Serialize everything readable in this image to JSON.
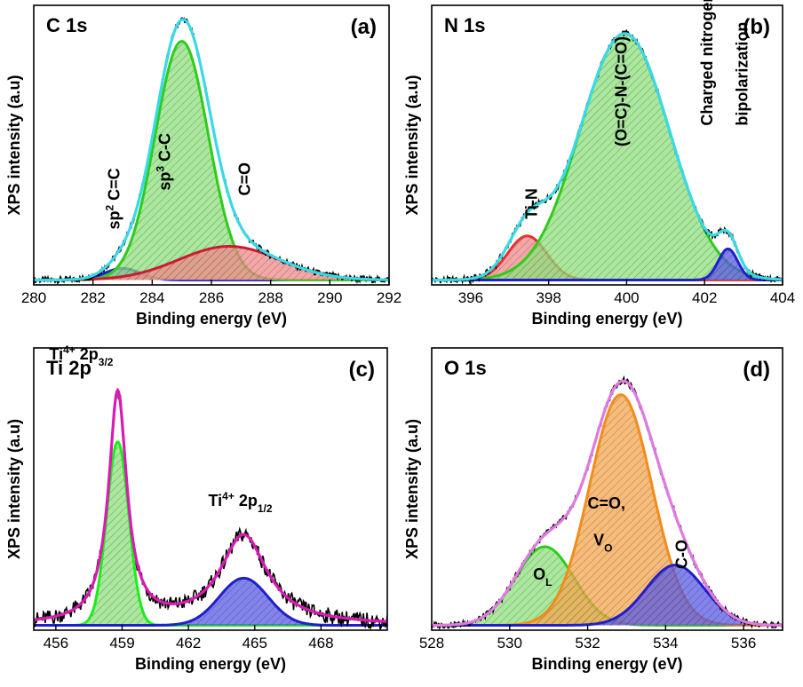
{
  "chart_data": [
    {
      "type": "line",
      "title": "C 1s",
      "panel_letter": "(a)",
      "xlabel": "Binding energy (eV)",
      "ylabel": "XPS intensity (a.u)",
      "xlim": [
        280,
        292
      ],
      "ylim": [
        0,
        1.05
      ],
      "xticks": [
        280,
        282,
        284,
        286,
        288,
        290,
        292
      ],
      "series": [
        {
          "role": "component",
          "color": "#1f1fcc",
          "fill": "#5a5ae6",
          "peaks": [
            {
              "center": 283.0,
              "amp": 0.045,
              "width": 0.6
            }
          ]
        },
        {
          "role": "component",
          "color": "#2ecc1a",
          "fill": "#8ee07c",
          "peaks": [
            {
              "center": 285.0,
              "amp": 0.92,
              "width": 0.9
            }
          ]
        },
        {
          "role": "component",
          "color": "#cc1a33",
          "fill": "#f08a8a",
          "peaks": [
            {
              "center": 286.6,
              "amp": 0.13,
              "width": 1.7
            }
          ]
        },
        {
          "role": "envelope",
          "color": "#39d9e6",
          "peaks": [
            {
              "center": 283.0,
              "amp": 0.045,
              "width": 0.6
            },
            {
              "center": 285.0,
              "amp": 0.92,
              "width": 0.9
            },
            {
              "center": 286.6,
              "amp": 0.13,
              "width": 1.7
            }
          ]
        }
      ],
      "annotations": [
        {
          "text": "sp",
          "sup": "2",
          "after": " C=C",
          "x": 282.9,
          "y": 0.2,
          "rotate": -90
        },
        {
          "text": "sp",
          "sup": "3",
          "after": " C-C",
          "x": 284.6,
          "y": 0.35,
          "rotate": -90
        },
        {
          "text": "C=O",
          "x": 287.3,
          "y": 0.33,
          "rotate": -90
        }
      ]
    },
    {
      "type": "line",
      "title": "N 1s",
      "panel_letter": "(b)",
      "xlabel": "Binding energy (eV)",
      "ylabel": "XPS intensity (a.u)",
      "xlim": [
        395,
        404
      ],
      "ylim": [
        0,
        1.05
      ],
      "xticks": [
        396,
        398,
        400,
        402,
        404
      ],
      "series": [
        {
          "role": "component",
          "color": "#e6332e",
          "fill": "#f08a8a",
          "peaks": [
            {
              "center": 397.45,
              "amp": 0.17,
              "width": 0.5
            }
          ]
        },
        {
          "role": "component",
          "color": "#2ecc1a",
          "fill": "#8ee07c",
          "peaks": [
            {
              "center": 399.95,
              "amp": 0.95,
              "width": 1.15
            }
          ]
        },
        {
          "role": "component",
          "color": "#1f1fcc",
          "fill": "#5a5ae6",
          "peaks": [
            {
              "center": 402.6,
              "amp": 0.12,
              "width": 0.25
            }
          ]
        },
        {
          "role": "envelope",
          "color": "#39d9e6",
          "peaks": [
            {
              "center": 397.45,
              "amp": 0.17,
              "width": 0.5
            },
            {
              "center": 399.95,
              "amp": 0.95,
              "width": 1.15
            },
            {
              "center": 402.6,
              "amp": 0.12,
              "width": 0.25
            }
          ]
        }
      ],
      "annotations": [
        {
          "text": "Ti-N",
          "x": 397.7,
          "y": 0.24,
          "rotate": -90
        },
        {
          "text": "(O=C)-N-(C=O)",
          "x": 400.0,
          "y": 0.52,
          "rotate": -90
        },
        {
          "text": "Charged nitrogen",
          "x": 402.2,
          "y": 0.6,
          "rotate": -90
        },
        {
          "text": "bipolarization",
          "x": 403.1,
          "y": 0.6,
          "rotate": -90
        }
      ]
    },
    {
      "type": "line",
      "title": "Ti 2p",
      "panel_letter": "(c)",
      "xlabel": "Binding energy (eV)",
      "ylabel": "XPS intensity (a.u)",
      "xlim": [
        455,
        471
      ],
      "ylim": [
        0,
        1.05
      ],
      "xticks": [
        456,
        459,
        462,
        465,
        468
      ],
      "series": [
        {
          "role": "component",
          "color": "#1aee1a",
          "fill": "#8ee07c",
          "peaks": [
            {
              "center": 458.8,
              "amp": 0.7,
              "width": 0.5
            }
          ]
        },
        {
          "role": "component",
          "color": "#1f1fcc",
          "fill": "#5a5ae6",
          "peaks": [
            {
              "center": 464.5,
              "amp": 0.18,
              "width": 1.1
            }
          ]
        },
        {
          "role": "envelope",
          "color": "#d91ab3",
          "peaks": [
            {
              "center": 458.8,
              "amp": 0.88,
              "width": 0.5
            },
            {
              "center": 464.5,
              "amp": 0.34,
              "width": 1.3
            }
          ],
          "lorentz": true
        }
      ],
      "annotations": [
        {
          "text": "Ti",
          "sup": "4+",
          "after": " 2p",
          "sub": "3/2",
          "x": 455.7,
          "y": 1.02,
          "rotate": 0
        },
        {
          "text": "Ti",
          "sup": "4+",
          "after": " 2p",
          "sub": "1/2",
          "x": 462.9,
          "y": 0.46,
          "rotate": 0
        }
      ]
    },
    {
      "type": "line",
      "title": "O 1s",
      "panel_letter": "(d)",
      "xlabel": "Binding energy (eV)",
      "ylabel": "XPS intensity (a.u)",
      "xlim": [
        528,
        537
      ],
      "ylim": [
        0,
        1.05
      ],
      "xticks": [
        528,
        530,
        532,
        534,
        536
      ],
      "series": [
        {
          "role": "component",
          "color": "#2ecc1a",
          "fill": "#8ee07c",
          "peaks": [
            {
              "center": 530.9,
              "amp": 0.3,
              "width": 0.75
            }
          ]
        },
        {
          "role": "component",
          "color": "#f28c1a",
          "fill": "#f5a64d",
          "peaks": [
            {
              "center": 532.85,
              "amp": 0.88,
              "width": 0.8
            }
          ]
        },
        {
          "role": "component",
          "color": "#1f1fcc",
          "fill": "#5a5ae6",
          "peaks": [
            {
              "center": 534.25,
              "amp": 0.23,
              "width": 0.75
            }
          ]
        },
        {
          "role": "envelope",
          "color": "#e07ae0",
          "peaks": [
            {
              "center": 530.9,
              "amp": 0.3,
              "width": 0.75
            },
            {
              "center": 532.85,
              "amp": 0.88,
              "width": 0.8
            },
            {
              "center": 534.25,
              "amp": 0.23,
              "width": 0.75
            }
          ]
        }
      ],
      "annotations": [
        {
          "text": "O",
          "sub": "L",
          "x": 530.6,
          "y": 0.18,
          "rotate": 0
        },
        {
          "text": "C=O,",
          "x": 532.0,
          "y": 0.45,
          "rotate": 0
        },
        {
          "text": "V",
          "sub": "O",
          "x": 532.15,
          "y": 0.31,
          "rotate": 0
        },
        {
          "text": "C-O",
          "x": 534.55,
          "y": 0.22,
          "rotate": -90
        }
      ]
    }
  ]
}
